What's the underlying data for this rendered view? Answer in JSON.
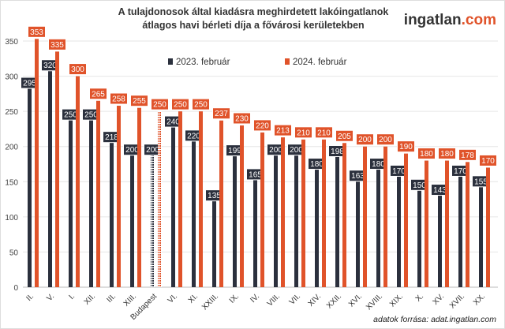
{
  "chart_data": {
    "type": "bar",
    "title": "A tulajdonosok által kiadásra meghirdetett lakóingatlanok átlagos havi bérleti díja a fővárosi kerületekben",
    "categories": [
      "II.",
      "V.",
      "I.",
      "XII.",
      "III.",
      "XIII.",
      "Budapest",
      "VI.",
      "XI.",
      "XXIII.",
      "IX.",
      "IV.",
      "VIII.",
      "VII.",
      "XIV.",
      "XXII.",
      "XVI.",
      "XVIII.",
      "XIX.",
      "X.",
      "XV.",
      "XVII.",
      "XX."
    ],
    "series": [
      {
        "name": "2023. február",
        "color": "#2b303d",
        "values": [
          295,
          320,
          250,
          250,
          218,
          200,
          200,
          240,
          220,
          135,
          199,
          165,
          200,
          200,
          180,
          198,
          163,
          180,
          170,
          150,
          143,
          170,
          155
        ]
      },
      {
        "name": "2024. február",
        "color": "#e0532a",
        "values": [
          353,
          335,
          300,
          265,
          258,
          255,
          250,
          250,
          250,
          237,
          230,
          220,
          213,
          210,
          210,
          205,
          200,
          200,
          190,
          180,
          180,
          178,
          170
        ]
      }
    ],
    "highlight_category": "Budapest",
    "ylim": [
      0,
      370
    ],
    "yticks": [
      0,
      50,
      100,
      150,
      200,
      250,
      300,
      350
    ],
    "grid": true,
    "legend": "top-center",
    "xlabel": "",
    "ylabel": ""
  },
  "logo": {
    "main": "ingatlan",
    "suffix": ".com"
  },
  "source": "adatok forrása: adat.ingatlan.com"
}
